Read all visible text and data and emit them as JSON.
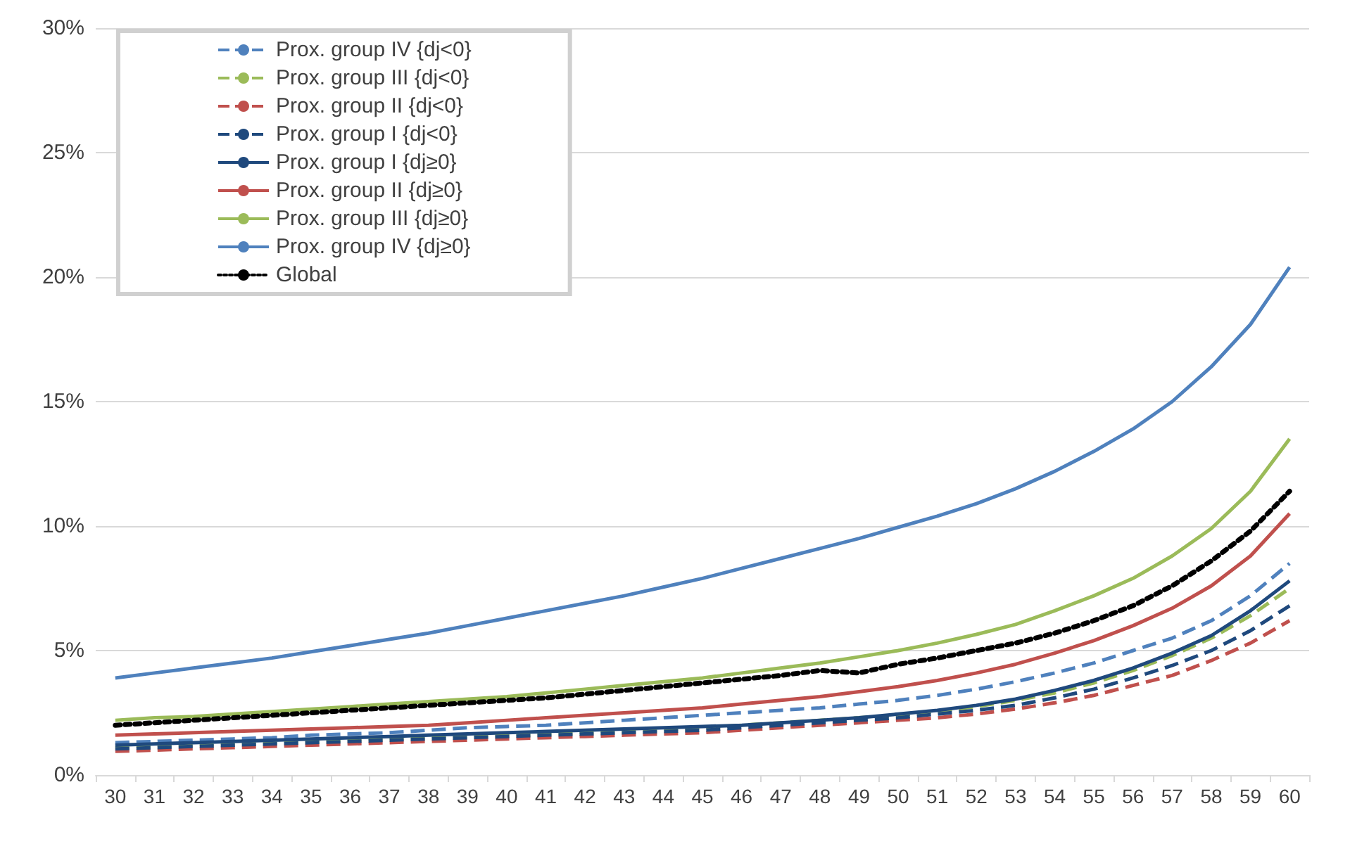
{
  "chart_data": {
    "type": "line",
    "categories": [
      "30",
      "31",
      "32",
      "33",
      "34",
      "35",
      "36",
      "37",
      "38",
      "39",
      "40",
      "41",
      "42",
      "43",
      "44",
      "45",
      "46",
      "47",
      "48",
      "49",
      "50",
      "51",
      "52",
      "53",
      "54",
      "55",
      "56",
      "57",
      "58",
      "59",
      "60"
    ],
    "series": [
      {
        "name": "Prox. group IV {dj<0}",
        "color": "#4f81bd",
        "line_style": "dashed",
        "values": [
          1.3,
          1.35,
          1.4,
          1.45,
          1.5,
          1.6,
          1.65,
          1.7,
          1.8,
          1.9,
          1.95,
          2.0,
          2.1,
          2.2,
          2.3,
          2.4,
          2.5,
          2.6,
          2.7,
          2.85,
          3.0,
          3.2,
          3.45,
          3.75,
          4.1,
          4.5,
          5.0,
          5.5,
          6.2,
          7.2,
          8.5
        ]
      },
      {
        "name": "Prox. group III {dj<0}",
        "color": "#9bbb59",
        "line_style": "dashed",
        "values": [
          1.1,
          1.15,
          1.2,
          1.25,
          1.3,
          1.35,
          1.4,
          1.45,
          1.5,
          1.55,
          1.6,
          1.65,
          1.7,
          1.75,
          1.8,
          1.9,
          2.0,
          2.1,
          2.2,
          2.3,
          2.4,
          2.55,
          2.75,
          3.0,
          3.3,
          3.7,
          4.2,
          4.8,
          5.5,
          6.4,
          7.5
        ]
      },
      {
        "name": "Prox. group II {dj<0}",
        "color": "#c0504d",
        "line_style": "dashed",
        "values": [
          0.95,
          1.0,
          1.05,
          1.1,
          1.15,
          1.2,
          1.25,
          1.3,
          1.35,
          1.4,
          1.45,
          1.5,
          1.55,
          1.6,
          1.65,
          1.7,
          1.8,
          1.9,
          2.0,
          2.1,
          2.2,
          2.3,
          2.45,
          2.65,
          2.9,
          3.2,
          3.6,
          4.0,
          4.6,
          5.3,
          6.2
        ]
      },
      {
        "name": "Prox. group I {dj<0}",
        "color": "#1f497d",
        "line_style": "dashed",
        "values": [
          1.05,
          1.1,
          1.15,
          1.2,
          1.25,
          1.3,
          1.35,
          1.4,
          1.45,
          1.5,
          1.55,
          1.6,
          1.65,
          1.7,
          1.75,
          1.8,
          1.9,
          2.0,
          2.1,
          2.2,
          2.3,
          2.45,
          2.6,
          2.8,
          3.1,
          3.45,
          3.9,
          4.4,
          5.0,
          5.8,
          6.8
        ]
      },
      {
        "name": "Prox. group I {dj≥0}",
        "color": "#1f497d",
        "line_style": "solid",
        "values": [
          1.2,
          1.25,
          1.3,
          1.35,
          1.4,
          1.45,
          1.5,
          1.55,
          1.6,
          1.65,
          1.7,
          1.75,
          1.8,
          1.85,
          1.9,
          1.95,
          2.0,
          2.1,
          2.2,
          2.3,
          2.45,
          2.6,
          2.8,
          3.05,
          3.4,
          3.8,
          4.3,
          4.9,
          5.6,
          6.6,
          7.8
        ]
      },
      {
        "name": "Prox. group II {dj≥0}",
        "color": "#c0504d",
        "line_style": "solid",
        "values": [
          1.6,
          1.65,
          1.7,
          1.75,
          1.8,
          1.85,
          1.9,
          1.95,
          2.0,
          2.1,
          2.2,
          2.3,
          2.4,
          2.5,
          2.6,
          2.7,
          2.85,
          3.0,
          3.15,
          3.35,
          3.55,
          3.8,
          4.1,
          4.45,
          4.9,
          5.4,
          6.0,
          6.7,
          7.6,
          8.8,
          10.5
        ]
      },
      {
        "name": "Prox. group III {dj≥0}",
        "color": "#9bbb59",
        "line_style": "solid",
        "values": [
          2.2,
          2.3,
          2.35,
          2.45,
          2.55,
          2.65,
          2.75,
          2.85,
          2.95,
          3.05,
          3.15,
          3.3,
          3.45,
          3.6,
          3.75,
          3.9,
          4.1,
          4.3,
          4.5,
          4.75,
          5.0,
          5.3,
          5.65,
          6.05,
          6.6,
          7.2,
          7.9,
          8.8,
          9.9,
          11.4,
          13.5
        ]
      },
      {
        "name": "Prox. group IV {dj≥0}",
        "color": "#4f81bd",
        "line_style": "solid",
        "values": [
          3.9,
          4.1,
          4.3,
          4.5,
          4.7,
          4.95,
          5.2,
          5.45,
          5.7,
          6.0,
          6.3,
          6.6,
          6.9,
          7.2,
          7.55,
          7.9,
          8.3,
          8.7,
          9.1,
          9.5,
          9.95,
          10.4,
          10.9,
          11.5,
          12.2,
          13.0,
          13.9,
          15.0,
          16.4,
          18.1,
          20.4
        ]
      },
      {
        "name": "Global",
        "color": "#000000",
        "line_style": "dotted",
        "values": [
          2.0,
          2.1,
          2.2,
          2.3,
          2.4,
          2.5,
          2.6,
          2.7,
          2.8,
          2.9,
          3.0,
          3.1,
          3.25,
          3.4,
          3.55,
          3.7,
          3.85,
          4.0,
          4.2,
          4.1,
          4.45,
          4.7,
          5.0,
          5.3,
          5.7,
          6.2,
          6.8,
          7.6,
          8.6,
          9.8,
          11.4
        ]
      }
    ],
    "ylim": [
      0,
      30
    ],
    "yticks": [
      {
        "value": 0,
        "label": "0%"
      },
      {
        "value": 5,
        "label": "5%"
      },
      {
        "value": 10,
        "label": "10%"
      },
      {
        "value": 15,
        "label": "15%"
      },
      {
        "value": 20,
        "label": "20%"
      },
      {
        "value": 25,
        "label": "25%"
      },
      {
        "value": 30,
        "label": "30%"
      }
    ],
    "grid": "y",
    "legend": "top left",
    "marker": "none"
  }
}
